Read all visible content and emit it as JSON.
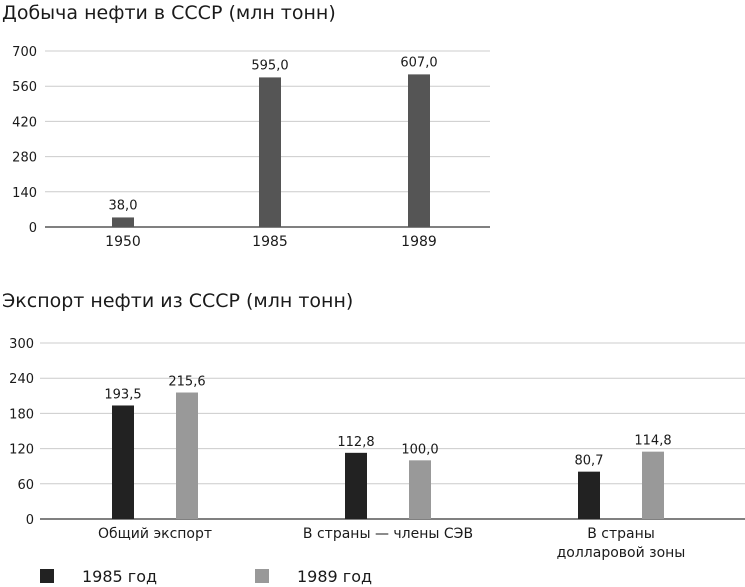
{
  "colors": {
    "bar": "#555555",
    "s1985": "#222222",
    "s1989": "#999999",
    "grid": "#cccccc",
    "axis": "#000000"
  },
  "chart_data": [
    {
      "type": "bar",
      "title": "Добыча нефти в СССР (млн тонн)",
      "categories": [
        "1950",
        "1985",
        "1989"
      ],
      "values": [
        38.0,
        595.0,
        607.0
      ],
      "value_labels": [
        "38,0",
        "595,0",
        "607,0"
      ],
      "yticks": [
        "0",
        "140",
        "280",
        "420",
        "560",
        "700"
      ],
      "ylim": [
        0,
        700
      ],
      "grid": true
    },
    {
      "type": "bar",
      "title": "Экспорт нефти из СССР (млн тонн)",
      "categories": [
        "Общий экспорт",
        "В страны — члены СЭВ",
        "В страны долларовой зоны"
      ],
      "category_lines": [
        [
          "Общий экспорт"
        ],
        [
          "В страны — члены СЭВ"
        ],
        [
          "В страны",
          "долларовой зоны"
        ]
      ],
      "series": [
        {
          "name": "1985 год",
          "values": [
            193.5,
            112.8,
            80.7
          ],
          "value_labels": [
            "193,5",
            "112,8",
            "80,7"
          ]
        },
        {
          "name": "1989 год",
          "values": [
            215.6,
            100.0,
            114.8
          ],
          "value_labels": [
            "215,6",
            "100,0",
            "114,8"
          ]
        }
      ],
      "yticks": [
        "0",
        "60",
        "120",
        "180",
        "240",
        "300"
      ],
      "ylim": [
        0,
        300
      ],
      "grid": true,
      "legend": "bottom"
    }
  ]
}
